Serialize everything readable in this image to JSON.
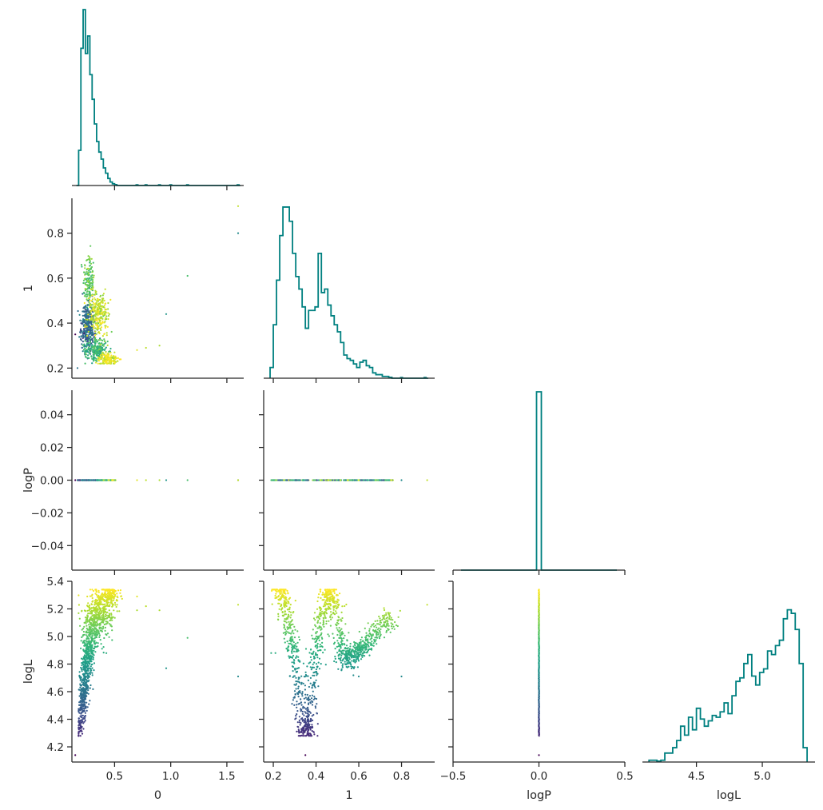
{
  "chart_data": {
    "type": "pairplot",
    "variables": [
      "0",
      "1",
      "logP",
      "logL"
    ],
    "corner": true,
    "hist_color": "#008080",
    "colormap": "viridis",
    "ranges": {
      "0": [
        0.12,
        1.65
      ],
      "1": [
        0.155,
        0.955
      ],
      "logP": [
        -0.055,
        0.055
      ],
      "logL": [
        4.09,
        5.4
      ]
    },
    "scatter_ranges": {
      "logP": [
        -0.5,
        0.5
      ]
    },
    "ticks": {
      "0": [
        0.5,
        1.0,
        1.5
      ],
      "1": [
        0.2,
        0.4,
        0.6,
        0.8
      ],
      "logP": [
        -0.04,
        -0.02,
        0.0,
        0.02,
        0.04
      ],
      "logL": [
        4.2,
        4.4,
        4.6,
        4.8,
        5.0,
        5.2,
        5.4
      ]
    },
    "tick_labels": {
      "0": [
        "0.5",
        "1.0",
        "1.5"
      ],
      "1": [
        "0.2",
        "0.4",
        "0.6",
        "0.8"
      ],
      "logP": [
        "−0.04",
        "−0.02",
        "0.00",
        "0.02",
        "0.04"
      ],
      "logL": [
        "4.2",
        "4.4",
        "4.6",
        "4.8",
        "5.0",
        "5.2",
        "5.4"
      ]
    },
    "bottom_ticks": {
      "logP": [
        -0.5,
        0.0,
        0.5
      ],
      "logL": [
        4.5,
        5.0
      ]
    },
    "bottom_tick_labels": {
      "logP": [
        "−0.5",
        "0.0",
        "0.5"
      ],
      "logL": [
        "4.5",
        "5.0"
      ]
    },
    "histograms": {
      "0": {
        "bins": [
          0.16,
          0.18,
          0.2,
          0.22,
          0.24,
          0.26,
          0.28,
          0.3,
          0.32,
          0.34,
          0.36,
          0.38,
          0.4,
          0.42,
          0.44,
          0.46,
          0.48,
          0.5,
          0.52
        ],
        "counts": [
          0,
          0.2,
          0.78,
          1.0,
          0.75,
          0.85,
          0.63,
          0.49,
          0.35,
          0.25,
          0.19,
          0.15,
          0.1,
          0.07,
          0.04,
          0.02,
          0.01,
          0.005
        ],
        "outliers": [
          0.7,
          0.78,
          0.9,
          1.0,
          1.15,
          1.6
        ]
      },
      "1": {
        "bins": [
          0.185,
          0.2,
          0.215,
          0.23,
          0.245,
          0.26,
          0.275,
          0.29,
          0.305,
          0.32,
          0.335,
          0.35,
          0.365,
          0.38,
          0.395,
          0.41,
          0.425,
          0.44,
          0.455,
          0.47,
          0.485,
          0.5,
          0.515,
          0.53,
          0.545,
          0.56,
          0.575,
          0.59,
          0.605,
          0.62,
          0.635,
          0.65,
          0.665,
          0.68,
          0.695,
          0.71,
          0.725,
          0.74,
          0.755
        ],
        "counts": [
          0.06,
          0.3,
          0.55,
          0.8,
          0.96,
          0.96,
          0.88,
          0.7,
          0.57,
          0.5,
          0.4,
          0.28,
          0.38,
          0.38,
          0.4,
          0.7,
          0.48,
          0.5,
          0.41,
          0.35,
          0.3,
          0.26,
          0.2,
          0.13,
          0.11,
          0.1,
          0.08,
          0.06,
          0.09,
          0.1,
          0.07,
          0.06,
          0.03,
          0.02,
          0.02,
          0.01,
          0.01,
          0.005
        ],
        "outliers": [
          0.8,
          0.91
        ]
      },
      "logP": {
        "value": 0.0,
        "count": 1.0
      },
      "logL": {
        "bins": [
          4.14,
          4.17,
          4.2,
          4.23,
          4.26,
          4.29,
          4.32,
          4.35,
          4.38,
          4.41,
          4.44,
          4.47,
          4.5,
          4.53,
          4.56,
          4.59,
          4.62,
          4.65,
          4.68,
          4.71,
          4.74,
          4.77,
          4.8,
          4.83,
          4.86,
          4.89,
          4.92,
          4.95,
          4.98,
          5.01,
          5.04,
          5.07,
          5.1,
          5.13,
          5.16,
          5.19,
          5.22,
          5.25,
          5.28,
          5.31,
          5.34
        ],
        "counts": [
          0.01,
          0.01,
          0.005,
          0.01,
          0.05,
          0.05,
          0.08,
          0.12,
          0.2,
          0.15,
          0.25,
          0.18,
          0.3,
          0.24,
          0.2,
          0.23,
          0.26,
          0.25,
          0.28,
          0.33,
          0.27,
          0.37,
          0.45,
          0.47,
          0.55,
          0.6,
          0.48,
          0.43,
          0.5,
          0.52,
          0.62,
          0.6,
          0.65,
          0.68,
          0.8,
          0.85,
          0.83,
          0.74,
          0.55,
          0.08
        ],
        "outliers": []
      }
    },
    "scatter_clusters": {
      "0_vs_1": [
        {
          "cx": 0.27,
          "cy": 0.58,
          "sx": 0.025,
          "sy": 0.07,
          "logL": 5.05,
          "n": 160
        },
        {
          "cx": 0.26,
          "cy": 0.38,
          "sx": 0.03,
          "sy": 0.05,
          "logL": 4.55,
          "n": 330
        },
        {
          "cx": 0.36,
          "cy": 0.44,
          "sx": 0.05,
          "sy": 0.05,
          "logL": 5.25,
          "n": 260
        },
        {
          "cx": 0.34,
          "cy": 0.28,
          "sx": 0.05,
          "sy": 0.025,
          "logL": 4.95,
          "n": 240
        },
        {
          "cx": 0.44,
          "cy": 0.24,
          "sx": 0.04,
          "sy": 0.012,
          "logL": 5.3,
          "n": 160
        }
      ],
      "0_vs_1_outliers": [
        [
          0.17,
          0.2,
          4.6
        ],
        [
          0.15,
          0.35,
          4.14
        ],
        [
          0.7,
          0.28,
          5.29
        ],
        [
          0.78,
          0.29,
          5.22
        ],
        [
          0.9,
          0.3,
          5.19
        ],
        [
          0.96,
          0.44,
          4.77
        ],
        [
          1.15,
          0.61,
          4.99
        ],
        [
          1.6,
          0.8,
          4.71
        ],
        [
          1.6,
          0.92,
          5.23
        ]
      ],
      "logL_vs_0": [
        {
          "cx": 0.22,
          "cy": 4.55,
          "sx": 0.02,
          "sy": 0.14,
          "n": 280
        },
        {
          "cx": 0.27,
          "cy": 4.9,
          "sx": 0.03,
          "sy": 0.18,
          "n": 420
        },
        {
          "cx": 0.36,
          "cy": 5.15,
          "sx": 0.06,
          "sy": 0.09,
          "n": 380
        },
        {
          "cx": 0.45,
          "cy": 5.3,
          "sx": 0.04,
          "sy": 0.03,
          "n": 160
        }
      ],
      "logL_vs_0_outliers": [
        [
          0.15,
          4.14
        ],
        [
          0.7,
          5.29
        ],
        [
          0.7,
          5.19
        ],
        [
          0.78,
          5.22
        ],
        [
          0.9,
          5.19
        ],
        [
          0.96,
          4.77
        ],
        [
          1.15,
          4.99
        ],
        [
          1.6,
          4.71
        ],
        [
          1.6,
          5.23
        ]
      ],
      "logL_vs_1_curve": [
        [
          0.225,
          5.34
        ],
        [
          0.24,
          5.3
        ],
        [
          0.26,
          5.18
        ],
        [
          0.28,
          5.02
        ],
        [
          0.3,
          4.85
        ],
        [
          0.32,
          4.62
        ],
        [
          0.34,
          4.35
        ],
        [
          0.355,
          4.3
        ],
        [
          0.37,
          4.42
        ],
        [
          0.39,
          4.72
        ],
        [
          0.41,
          5.0
        ],
        [
          0.43,
          5.18
        ],
        [
          0.45,
          5.3
        ],
        [
          0.47,
          5.32
        ],
        [
          0.49,
          5.2
        ],
        [
          0.51,
          5.02
        ],
        [
          0.53,
          4.87
        ],
        [
          0.55,
          4.82
        ],
        [
          0.57,
          4.87
        ],
        [
          0.6,
          4.9
        ],
        [
          0.63,
          4.94
        ],
        [
          0.67,
          5.02
        ],
        [
          0.72,
          5.1
        ],
        [
          0.76,
          5.13
        ]
      ],
      "logL_vs_1_outliers": [
        [
          0.19,
          4.88
        ],
        [
          0.21,
          4.88
        ],
        [
          0.35,
          4.14
        ],
        [
          0.6,
          4.71
        ],
        [
          0.8,
          4.71
        ],
        [
          0.92,
          5.23
        ]
      ]
    }
  }
}
